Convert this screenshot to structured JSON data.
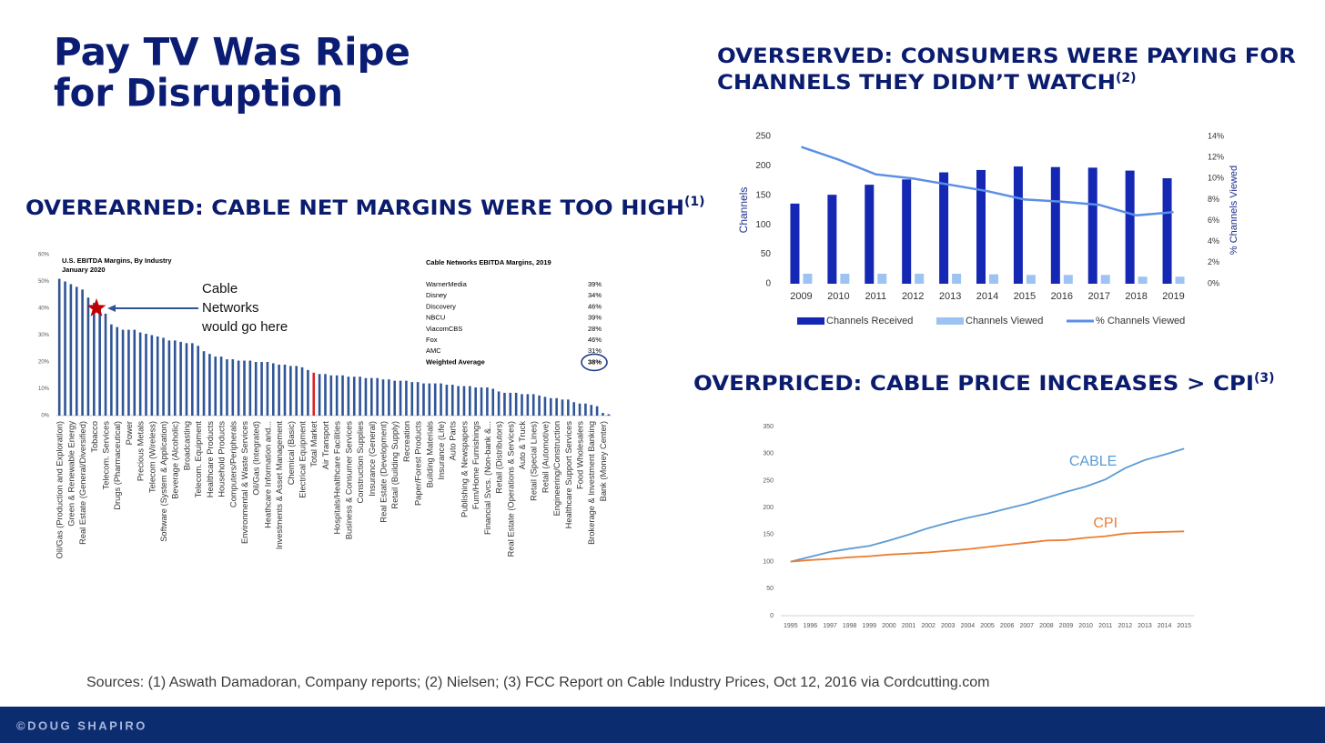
{
  "slide": {
    "title_lines": [
      "Pay TV Was Ripe",
      "for Disruption"
    ],
    "headings": [
      {
        "text": "OVEREARNED: CABLE NET MARGINS WERE TOO HIGH",
        "note": "(1)"
      },
      {
        "text": "OVERSERVED: CONSUMERS WERE PAYING FOR",
        "text2": "CHANNELS THEY DIDN’T WATCH",
        "note": "(2)"
      },
      {
        "text": "OVERPRICED: CABLE PRICE INCREASES > CPI",
        "note": "(3)"
      }
    ],
    "sources": "Sources:  (1) Aswath Damadoran, Company reports; (2) Nielsen; (3) FCC Report on Cable Industry Prices, Oct 12, 2016 via Cordcutting.com",
    "footer": "©DOUG SHAPIRO"
  },
  "chart_data": [
    {
      "type": "bar",
      "title": "U.S. EBITDA Margins, By Industry",
      "subtitle": "January 2020",
      "color": "#2f5597",
      "highlight": {
        "category": "Total Market",
        "color": "#e02020"
      },
      "categories": [
        "Oil/Gas (Production and Exploration)",
        null,
        "Green & Renewable Energy",
        null,
        "Real Estate (General/Diversified)",
        null,
        "Tobacco",
        null,
        "Telecom. Services",
        null,
        "Drugs (Pharmaceutical)",
        null,
        "Power",
        null,
        "Precious Metals",
        null,
        "Telecom (Wireless)",
        null,
        "Software (System & Application)",
        null,
        "Beverage (Alcoholic)",
        null,
        "Broadcasting",
        null,
        "Telecom. Equipment",
        null,
        "Healthcare Products",
        null,
        "Household Products",
        null,
        "Computers/Peripherals",
        null,
        "Environmental & Waste Services",
        null,
        "Oil/Gas (Integrated)",
        null,
        "Heathcare Information and...",
        null,
        "Investments & Asset Management",
        null,
        "Chemical (Basic)",
        null,
        "Electrical Equipment",
        null,
        "Total Market",
        null,
        "Air Transport",
        null,
        "Hospitals/Healthcare Facilities",
        null,
        "Business & Consumer Services",
        null,
        "Construction Supplies",
        null,
        "Insurance (General)",
        null,
        "Real Estate (Development)",
        null,
        "Retail (Building Supply)",
        null,
        "Recreation",
        null,
        "Paper/Forest Products",
        null,
        "Building Materials",
        null,
        "Insurance (Life)",
        null,
        "Auto Parts",
        null,
        "Publishing & Newspapers",
        null,
        "Furn/Home Furnishings",
        null,
        "Financial Svcs. (Non-bank &...",
        null,
        "Retail (Distributors)",
        null,
        "Real Estate (Operations & Services)",
        null,
        "Auto & Truck",
        null,
        "Retail (Special Lines)",
        null,
        "Retail (Automotive)",
        null,
        "Engineering/Construction",
        null,
        "Healthcare Support Services",
        null,
        "Food Wholesalers",
        null,
        "Brokerage & Investment Banking",
        null,
        "Bank (Money Center)",
        null
      ],
      "values": [
        51,
        50,
        49,
        48,
        47,
        44,
        42,
        40,
        38,
        34,
        33,
        32,
        32,
        32,
        31,
        30.5,
        30,
        29.5,
        29,
        28,
        28,
        27.5,
        27,
        27,
        26,
        24,
        23,
        22,
        22,
        21,
        21,
        20.5,
        20.5,
        20.5,
        20,
        20,
        20,
        19.5,
        19,
        19,
        18.5,
        18.5,
        18,
        17,
        16,
        15.5,
        15.5,
        15,
        15,
        15,
        14.5,
        14.5,
        14.5,
        14,
        14,
        14,
        13.5,
        13.5,
        13,
        13,
        13,
        12.5,
        12.5,
        12,
        12,
        12,
        12,
        11.5,
        11.5,
        11,
        11,
        11,
        10.5,
        10.5,
        10.5,
        10,
        9,
        8.5,
        8.5,
        8.5,
        8,
        8,
        8,
        7.5,
        7,
        6.5,
        6.5,
        6,
        6,
        5,
        4.5,
        4.5,
        4,
        3.5,
        1,
        0.5
      ],
      "ylim": [
        0,
        60
      ],
      "yticks": [
        {
          "value": 0,
          "label": "0%"
        },
        {
          "value": 10,
          "label": "10%"
        },
        {
          "value": 20,
          "label": "20%"
        },
        {
          "value": 30,
          "label": "30%"
        },
        {
          "value": 40,
          "label": "40%"
        },
        {
          "value": 50,
          "label": "50%"
        },
        {
          "value": 60,
          "label": "60%"
        }
      ],
      "grid": false,
      "annotation": {
        "lines": [
          "Cable",
          "Networks",
          "would go here"
        ],
        "value": 40,
        "color": "#c00000"
      },
      "inset_table": {
        "title": "Cable Networks EBITDA Margins, 2019",
        "rows": [
          [
            "WarnerMedia",
            "39%"
          ],
          [
            "Disney",
            "34%"
          ],
          [
            "Discovery",
            "46%"
          ],
          [
            "NBCU",
            "39%"
          ],
          [
            "ViacomCBS",
            "28%"
          ],
          [
            "Fox",
            "46%"
          ],
          [
            "AMC",
            "31%"
          ],
          [
            "Weighted Average",
            "38%"
          ]
        ]
      }
    },
    {
      "type": "combo",
      "categories": [
        "2009",
        "2010",
        "2011",
        "2012",
        "2013",
        "2014",
        "2015",
        "2016",
        "2017",
        "2018",
        "2019"
      ],
      "ylabel": "Channels",
      "y2label": "% Channels Viewed",
      "series": [
        {
          "name": "Channels Received",
          "color": "#1428b4",
          "values": [
            136,
            151,
            168,
            177,
            189,
            193,
            199,
            198,
            197,
            192,
            179
          ]
        },
        {
          "name": "Channels Viewed",
          "color": "#9dc3f2",
          "values": [
            17,
            17,
            17,
            17,
            17,
            16,
            15,
            15,
            15,
            12,
            12
          ]
        },
        {
          "name": "% Channels Viewed",
          "color": "#5b8fe6",
          "axis": "y2",
          "values": [
            13.0,
            11.8,
            10.4,
            10.0,
            9.4,
            8.8,
            8.0,
            7.8,
            7.5,
            6.5,
            6.8
          ]
        }
      ],
      "ylim": [
        0,
        250
      ],
      "yticks": [
        0,
        50,
        100,
        150,
        200,
        250
      ],
      "y2lim": [
        0,
        14
      ],
      "y2ticks": [
        {
          "value": 0,
          "label": "0%"
        },
        {
          "value": 2,
          "label": "2%"
        },
        {
          "value": 4,
          "label": "4%"
        },
        {
          "value": 6,
          "label": "6%"
        },
        {
          "value": 8,
          "label": "8%"
        },
        {
          "value": 10,
          "label": "10%"
        },
        {
          "value": 12,
          "label": "12%"
        },
        {
          "value": 14,
          "label": "14%"
        }
      ],
      "legend": "bottom"
    },
    {
      "type": "line",
      "categories": [
        "1995",
        "1996",
        "1997",
        "1998",
        "1999",
        "2000",
        "2001",
        "2002",
        "2003",
        "2004",
        "2005",
        "2006",
        "2007",
        "2008",
        "2009",
        "2010",
        "2011",
        "2012",
        "2013",
        "2014",
        "2015"
      ],
      "series": [
        {
          "name": "CABLE",
          "color": "#5b9bd5",
          "values": [
            100,
            109,
            118,
            124,
            129,
            139,
            150,
            162,
            172,
            181,
            189,
            198,
            207,
            218,
            229,
            239,
            252,
            273,
            288,
            298,
            309
          ]
        },
        {
          "name": "CPI",
          "color": "#ed7d31",
          "values": [
            100,
            103,
            105,
            108,
            110,
            113,
            115,
            117,
            120,
            123,
            127,
            131,
            135,
            139,
            140,
            144,
            147,
            152,
            154,
            155,
            156
          ]
        }
      ],
      "ylim": [
        0,
        350
      ],
      "yticks": [
        0,
        50,
        100,
        150,
        200,
        250,
        300,
        350
      ]
    }
  ]
}
